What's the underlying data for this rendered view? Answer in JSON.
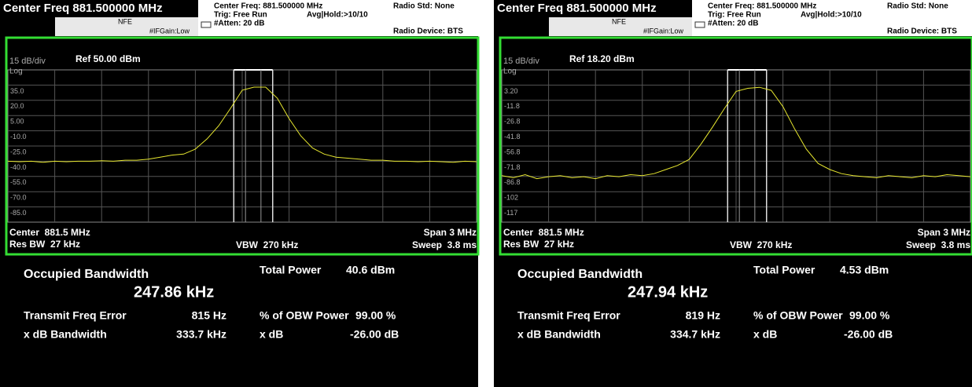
{
  "screens": [
    {
      "header": {
        "title": "Center Freq 881.500000 MHz",
        "mode": "NFE",
        "if_gain": "#IFGain:Low",
        "center_freq": "Center Freq: 881.500000 MHz",
        "trig": "Trig: Free Run",
        "avg_hold": "Avg|Hold:>10/10",
        "atten": "#Atten: 20 dB",
        "radio_std": "Radio Std: None",
        "radio_device": "Radio Device: BTS"
      },
      "graph": {
        "scale": "15 dB/div",
        "ref": "Ref 50.00 dBm",
        "log": "Log",
        "ylim": [
          -100,
          50
        ],
        "yticks": [
          {
            "value": 35,
            "label": "35.0"
          },
          {
            "value": 20,
            "label": "20.0"
          },
          {
            "value": 5,
            "label": "5.00"
          },
          {
            "value": -10,
            "label": "-10.0"
          },
          {
            "value": -25,
            "label": "-25.0"
          },
          {
            "value": -40,
            "label": "-40.0"
          },
          {
            "value": -55,
            "label": "-55.0"
          },
          {
            "value": -70,
            "label": "-70.0"
          },
          {
            "value": -85,
            "label": "-85.0"
          }
        ],
        "center": "Center  881.5 MHz",
        "res_bw": "Res BW  27 kHz",
        "vbw": "VBW  270 kHz",
        "span": "Span 3 MHz",
        "sweep": "Sweep  3.8 ms",
        "trace": {
          "color": "#e8e830",
          "values": [
            -40,
            -40.5,
            -40,
            -41,
            -40,
            -40.5,
            -40,
            -40,
            -39.5,
            -40,
            -39,
            -39,
            -38,
            -36,
            -34,
            -33,
            -28,
            -18,
            -5,
            12,
            30,
            33,
            33,
            22,
            2,
            -15,
            -27,
            -33,
            -36,
            -37,
            -38,
            -39,
            -39,
            -40,
            -40,
            -40.5,
            -40,
            -40.5,
            -41,
            -40,
            -40.5
          ]
        }
      },
      "results": {
        "obw_label": "Occupied Bandwidth",
        "obw_value": "247.86 kHz",
        "total_power_label": "Total Power",
        "total_power_value": "40.6 dBm",
        "freq_error_label": "Transmit Freq Error",
        "freq_error_value": "815 Hz",
        "obw_power_label": "% of OBW Power",
        "obw_power_value": "99.00 %",
        "xdb_bw_label": "x dB Bandwidth",
        "xdb_bw_value": "333.7 kHz",
        "xdb_label": "x dB",
        "xdb_value": "-26.00 dB"
      }
    },
    {
      "header": {
        "title": "Center Freq 881.500000 MHz",
        "mode": "NFE",
        "if_gain": "#IFGain:Low",
        "center_freq": "Center Freq: 881.500000 MHz",
        "trig": "Trig: Free Run",
        "avg_hold": "Avg|Hold:>10/10",
        "atten": "#Atten: 20 dB",
        "radio_std": "Radio Std: None",
        "radio_device": "Radio Device: BTS"
      },
      "graph": {
        "scale": "15 dB/div",
        "ref": "Ref 18.20 dBm",
        "log": "Log",
        "ylim": [
          -131.8,
          18.2
        ],
        "yticks": [
          {
            "value": 3.2,
            "label": "3.20"
          },
          {
            "value": -11.8,
            "label": "-11.8"
          },
          {
            "value": -26.8,
            "label": "-26.8"
          },
          {
            "value": -41.8,
            "label": "-41.8"
          },
          {
            "value": -56.8,
            "label": "-56.8"
          },
          {
            "value": -71.8,
            "label": "-71.8"
          },
          {
            "value": -86.8,
            "label": "-86.8"
          },
          {
            "value": -101.8,
            "label": "-102"
          },
          {
            "value": -116.8,
            "label": "-117"
          }
        ],
        "center": "Center  881.5 MHz",
        "res_bw": "Res BW  27 kHz",
        "vbw": "VBW  270 kHz",
        "span": "Span 3 MHz",
        "sweep": "Sweep  3.8 ms",
        "trace": {
          "color": "#e8e830",
          "values": [
            -86,
            -88,
            -85,
            -89,
            -87,
            -86,
            -88,
            -87,
            -89,
            -86,
            -87,
            -85,
            -86,
            -84,
            -80,
            -76,
            -70,
            -55,
            -38,
            -20,
            -3,
            0,
            1,
            -2,
            -18,
            -40,
            -60,
            -74,
            -80,
            -84,
            -86,
            -87,
            -88,
            -86,
            -87,
            -88,
            -86,
            -87,
            -85,
            -86,
            -87
          ]
        }
      },
      "results": {
        "obw_label": "Occupied Bandwidth",
        "obw_value": "247.94 kHz",
        "total_power_label": "Total Power",
        "total_power_value": "4.53 dBm",
        "freq_error_label": "Transmit Freq Error",
        "freq_error_value": "819 Hz",
        "obw_power_label": "% of OBW Power",
        "obw_power_value": "99.00 %",
        "xdb_bw_label": "x dB Bandwidth",
        "xdb_bw_value": "334.7 kHz",
        "xdb_label": "x dB",
        "xdb_value": "-26.00 dB"
      }
    }
  ]
}
